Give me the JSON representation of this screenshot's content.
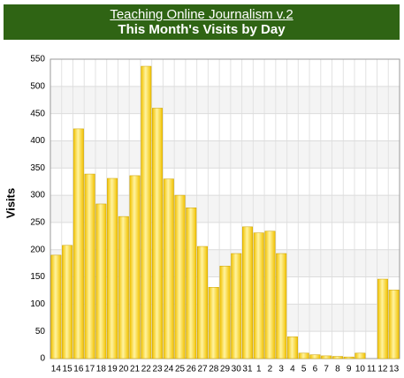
{
  "chart_data": {
    "type": "bar",
    "title": "Teaching Online Journalism v.2",
    "subtitle": "This Month's Visits by Day",
    "y_label": "Visits",
    "categories": [
      "14",
      "15",
      "16",
      "17",
      "18",
      "19",
      "20",
      "21",
      "22",
      "23",
      "24",
      "25",
      "26",
      "27",
      "28",
      "29",
      "30",
      "31",
      "1",
      "2",
      "3",
      "4",
      "5",
      "6",
      "7",
      "8",
      "9",
      "10",
      "11",
      "12",
      "13"
    ],
    "values": [
      190,
      208,
      422,
      339,
      284,
      331,
      261,
      336,
      537,
      460,
      330,
      300,
      277,
      206,
      131,
      170,
      193,
      242,
      231,
      234,
      193,
      40,
      10,
      7,
      5,
      4,
      3,
      10,
      0,
      146,
      126
    ],
    "color": "#f2c200",
    "ylim": [
      0,
      550
    ],
    "yticks": [
      0,
      50,
      100,
      150,
      200,
      250,
      300,
      350,
      400,
      450,
      500,
      550
    ],
    "grid": true
  }
}
